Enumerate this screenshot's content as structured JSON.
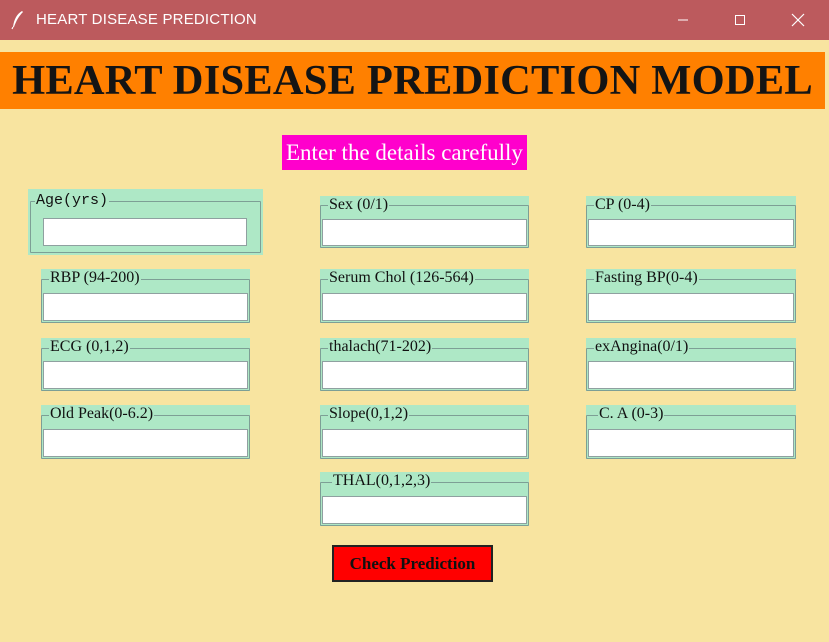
{
  "window": {
    "title": "HEART DISEASE PREDICTION",
    "icons": [
      "feather-icon",
      "minimize-icon",
      "maximize-icon",
      "close-icon"
    ]
  },
  "header": {
    "title": "HEART DISEASE PREDICTION MODEL",
    "subtitle": "Enter the details carefully"
  },
  "fields": {
    "age": {
      "label": "Age(yrs)",
      "value": ""
    },
    "sex": {
      "label": "Sex (0/1)",
      "value": ""
    },
    "cp": {
      "label": "CP (0-4)",
      "value": ""
    },
    "rbp": {
      "label": "RBP (94-200)",
      "value": ""
    },
    "chol": {
      "label": "Serum Chol (126-564)",
      "value": ""
    },
    "fbs": {
      "label": "Fasting BP(0-4)",
      "value": ""
    },
    "ecg": {
      "label": "ECG (0,1,2)",
      "value": ""
    },
    "thalach": {
      "label": "thalach(71-202)",
      "value": ""
    },
    "exang": {
      "label": "exAngina(0/1)",
      "value": ""
    },
    "oldpeak": {
      "label": "Old Peak(0-6.2)",
      "value": ""
    },
    "slope": {
      "label": "Slope(0,1,2)",
      "value": ""
    },
    "ca": {
      "label": "C. A (0-3)",
      "value": ""
    },
    "thal": {
      "label": "THAL(0,1,2,3)",
      "value": ""
    }
  },
  "actions": {
    "predict_label": "Check Prediction"
  },
  "colors": {
    "titlebar": "#bc5a5d",
    "background": "#f8e4a0",
    "banner": "#ff8000",
    "subtitle_bg": "#ff00cc",
    "field_group": "#aee8c6",
    "button": "#ff0000"
  }
}
